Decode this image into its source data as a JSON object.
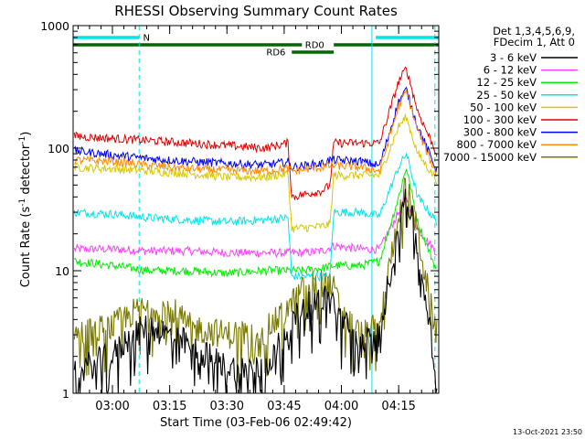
{
  "chart_data": {
    "type": "line",
    "title": "RHESSI Observing Summary Count Rates",
    "xlabel": "Start Time (03-Feb-06 02:49:42)",
    "ylabel_main": "Count Rate (s",
    "ylabel_sup1": "-1",
    "ylabel_mid": " detector",
    "ylabel_sup2": "-1",
    "ylabel_end": ")",
    "yscale": "log",
    "ylim": [
      1,
      1000
    ],
    "xlim": [
      "02:49:42",
      "04:25:30"
    ],
    "x_ticks": [
      "03:00",
      "03:15",
      "03:30",
      "03:45",
      "04:00",
      "04:15"
    ],
    "y_ticks": [
      "1",
      "10",
      "100",
      "1000"
    ],
    "legend_header": [
      "Det 1,3,4,5,6,9,",
      "FDecim 1, Att 0"
    ],
    "timestamp": "13-Oct-2021 23:50",
    "flags": [
      {
        "name": "N",
        "color": "#00e5e5",
        "start": "02:49:42",
        "end": "03:07:00",
        "label_at": "03:07:00"
      },
      {
        "name": "N",
        "color": "#00e5e5",
        "start": "04:09:00",
        "end": "04:25:30",
        "label_at": ""
      },
      {
        "name": "RD0",
        "color": "#006600",
        "start": "02:49:42",
        "end": "03:56:00",
        "label_at": "03:53:00"
      },
      {
        "name": "RD0",
        "color": "#006600",
        "start": "03:58:00",
        "end": "04:25:30",
        "label_at": ""
      },
      {
        "name": "RD6",
        "color": "#006600",
        "start": "03:47:00",
        "end": "03:58:00",
        "label_at": "03:45:00"
      }
    ],
    "vlines": [
      {
        "time": "03:07:00",
        "style": "dashed"
      },
      {
        "time": "04:08:00",
        "style": "solid"
      },
      {
        "time": "04:24:30",
        "style": "dashed"
      }
    ],
    "series": [
      {
        "name": "3 - 6 keV",
        "color": "#000000"
      },
      {
        "name": "6 - 12 keV",
        "color": "#ff40ff"
      },
      {
        "name": "12 - 25 keV",
        "color": "#00ee00"
      },
      {
        "name": "25 - 50 keV",
        "color": "#00e5ee"
      },
      {
        "name": "50 - 100 keV",
        "color": "#d8c800"
      },
      {
        "name": "100 - 300 keV",
        "color": "#e00000"
      },
      {
        "name": "300 - 800 keV",
        "color": "#0000ee"
      },
      {
        "name": "800 - 7000 keV",
        "color": "#ff8c00"
      },
      {
        "name": "7000 - 15000 keV",
        "color": "#7a7a00"
      }
    ],
    "curves": [
      {
        "series": "6 - 12 keV",
        "x": [
          "02:50",
          "03:00",
          "03:10",
          "03:20",
          "03:30",
          "03:40",
          "03:47",
          "03:50",
          "03:55",
          "03:58",
          "04:05",
          "04:10",
          "04:15",
          "04:17",
          "04:20",
          "04:25"
        ],
        "y": [
          15,
          15,
          14.5,
          14.5,
          14,
          14,
          14,
          14,
          14.5,
          16,
          15,
          15,
          30,
          40,
          22,
          14
        ]
      },
      {
        "series": "12 - 25 keV",
        "x": [
          "02:50",
          "03:00",
          "03:10",
          "03:20",
          "03:30",
          "03:40",
          "03:47",
          "03:50",
          "03:55",
          "03:58",
          "04:05",
          "04:10",
          "04:15",
          "04:17",
          "04:20",
          "04:25"
        ],
        "y": [
          12,
          11,
          10,
          10,
          9.5,
          10,
          10,
          10,
          10.5,
          11,
          11,
          12,
          40,
          70,
          25,
          10
        ]
      },
      {
        "series": "25 - 50 keV",
        "x": [
          "02:50",
          "03:00",
          "03:10",
          "03:20",
          "03:30",
          "03:40",
          "03:46",
          "03:47",
          "03:55",
          "03:57",
          "03:58",
          "04:05",
          "04:10",
          "04:15",
          "04:17",
          "04:20",
          "04:25"
        ],
        "y": [
          30,
          29,
          27,
          26,
          25,
          26,
          27,
          9,
          9,
          9,
          30,
          30,
          28,
          70,
          90,
          40,
          25
        ]
      },
      {
        "series": "50 - 100 keV",
        "x": [
          "02:50",
          "03:00",
          "03:10",
          "03:20",
          "03:30",
          "03:40",
          "03:46",
          "03:47",
          "03:55",
          "03:57",
          "03:58",
          "04:05",
          "04:10",
          "04:15",
          "04:17",
          "04:20",
          "04:25"
        ],
        "y": [
          70,
          68,
          65,
          62,
          58,
          58,
          62,
          22,
          23,
          24,
          60,
          60,
          60,
          150,
          180,
          90,
          55
        ]
      },
      {
        "series": "100 - 300 keV",
        "x": [
          "02:50",
          "03:00",
          "03:10",
          "03:20",
          "03:30",
          "03:40",
          "03:46",
          "03:47",
          "03:55",
          "03:57",
          "03:58",
          "04:05",
          "04:10",
          "04:15",
          "04:17",
          "04:20",
          "04:25"
        ],
        "y": [
          125,
          120,
          115,
          110,
          105,
          100,
          110,
          40,
          45,
          50,
          110,
          110,
          110,
          350,
          450,
          200,
          90
        ]
      },
      {
        "series": "300 - 800 keV",
        "x": [
          "02:50",
          "03:00",
          "03:10",
          "03:20",
          "03:30",
          "03:40",
          "03:46",
          "03:47",
          "03:55",
          "03:57",
          "03:58",
          "04:05",
          "04:10",
          "04:15",
          "04:17",
          "04:20",
          "04:25"
        ],
        "y": [
          95,
          88,
          82,
          78,
          75,
          73,
          77,
          70,
          75,
          80,
          80,
          78,
          72,
          240,
          300,
          150,
          65
        ]
      },
      {
        "series": "800 - 7000 keV",
        "x": [
          "02:50",
          "03:00",
          "03:10",
          "03:20",
          "03:30",
          "03:40",
          "03:46",
          "03:47",
          "03:55",
          "03:57",
          "03:58",
          "04:05",
          "04:10",
          "04:15",
          "04:17",
          "04:20",
          "04:25"
        ],
        "y": [
          80,
          78,
          72,
          68,
          66,
          65,
          68,
          65,
          70,
          72,
          72,
          70,
          65,
          220,
          290,
          140,
          60
        ]
      },
      {
        "series": "7000 - 15000 keV",
        "x": [
          "02:50",
          "03:00",
          "03:05",
          "03:10",
          "03:15",
          "03:20",
          "03:30",
          "03:40",
          "03:45",
          "03:50",
          "03:55",
          "03:58",
          "04:00",
          "04:05",
          "04:10",
          "04:15",
          "04:17",
          "04:20",
          "04:23",
          "04:25"
        ],
        "y": [
          3,
          3.5,
          4.5,
          5,
          5,
          3.5,
          3,
          3.2,
          4.5,
          7,
          8,
          7,
          4.5,
          3,
          3.5,
          30,
          50,
          20,
          6,
          3
        ]
      },
      {
        "series": "3 - 6 keV",
        "x": [
          "02:50",
          "03:00",
          "03:05",
          "03:10",
          "03:15",
          "03:20",
          "03:30",
          "03:40",
          "03:45",
          "03:50",
          "03:55",
          "03:58",
          "04:00",
          "04:05",
          "04:10",
          "04:15",
          "04:17",
          "04:20",
          "04:23",
          "04:25"
        ],
        "y": [
          1.5,
          2,
          3,
          3.5,
          3,
          2.5,
          1.6,
          1.6,
          3,
          5,
          6,
          5.5,
          4,
          2.5,
          3,
          25,
          45,
          15,
          4,
          1
        ]
      }
    ]
  }
}
